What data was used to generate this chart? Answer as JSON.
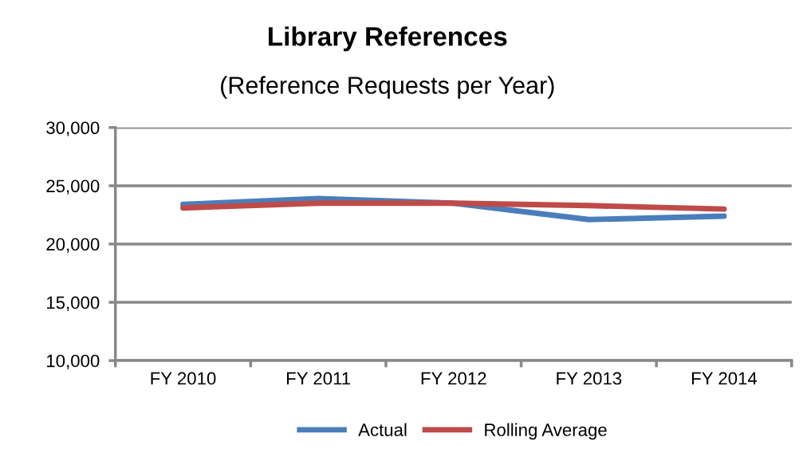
{
  "chart_data": {
    "type": "line",
    "title": "Library References",
    "subtitle": "(Reference Requests per Year)",
    "categories": [
      "FY 2010",
      "FY 2011",
      "FY 2012",
      "FY 2013",
      "FY 2014"
    ],
    "series": [
      {
        "name": "Actual",
        "color": "#4a7ebb",
        "values": [
          23400,
          23900,
          23500,
          22100,
          22400
        ]
      },
      {
        "name": "Rolling Average",
        "color": "#be4b48",
        "values": [
          23100,
          23500,
          23500,
          23300,
          23000
        ]
      }
    ],
    "ylim": [
      10000,
      30000
    ],
    "yticks": [
      {
        "value": 10000,
        "label": "10,000"
      },
      {
        "value": 15000,
        "label": "15,000"
      },
      {
        "value": 20000,
        "label": "20,000"
      },
      {
        "value": 25000,
        "label": "25,000"
      },
      {
        "value": 30000,
        "label": "30,000"
      }
    ],
    "grid": "y",
    "legend": "bottom",
    "marker": "none",
    "line_style": "solid"
  }
}
